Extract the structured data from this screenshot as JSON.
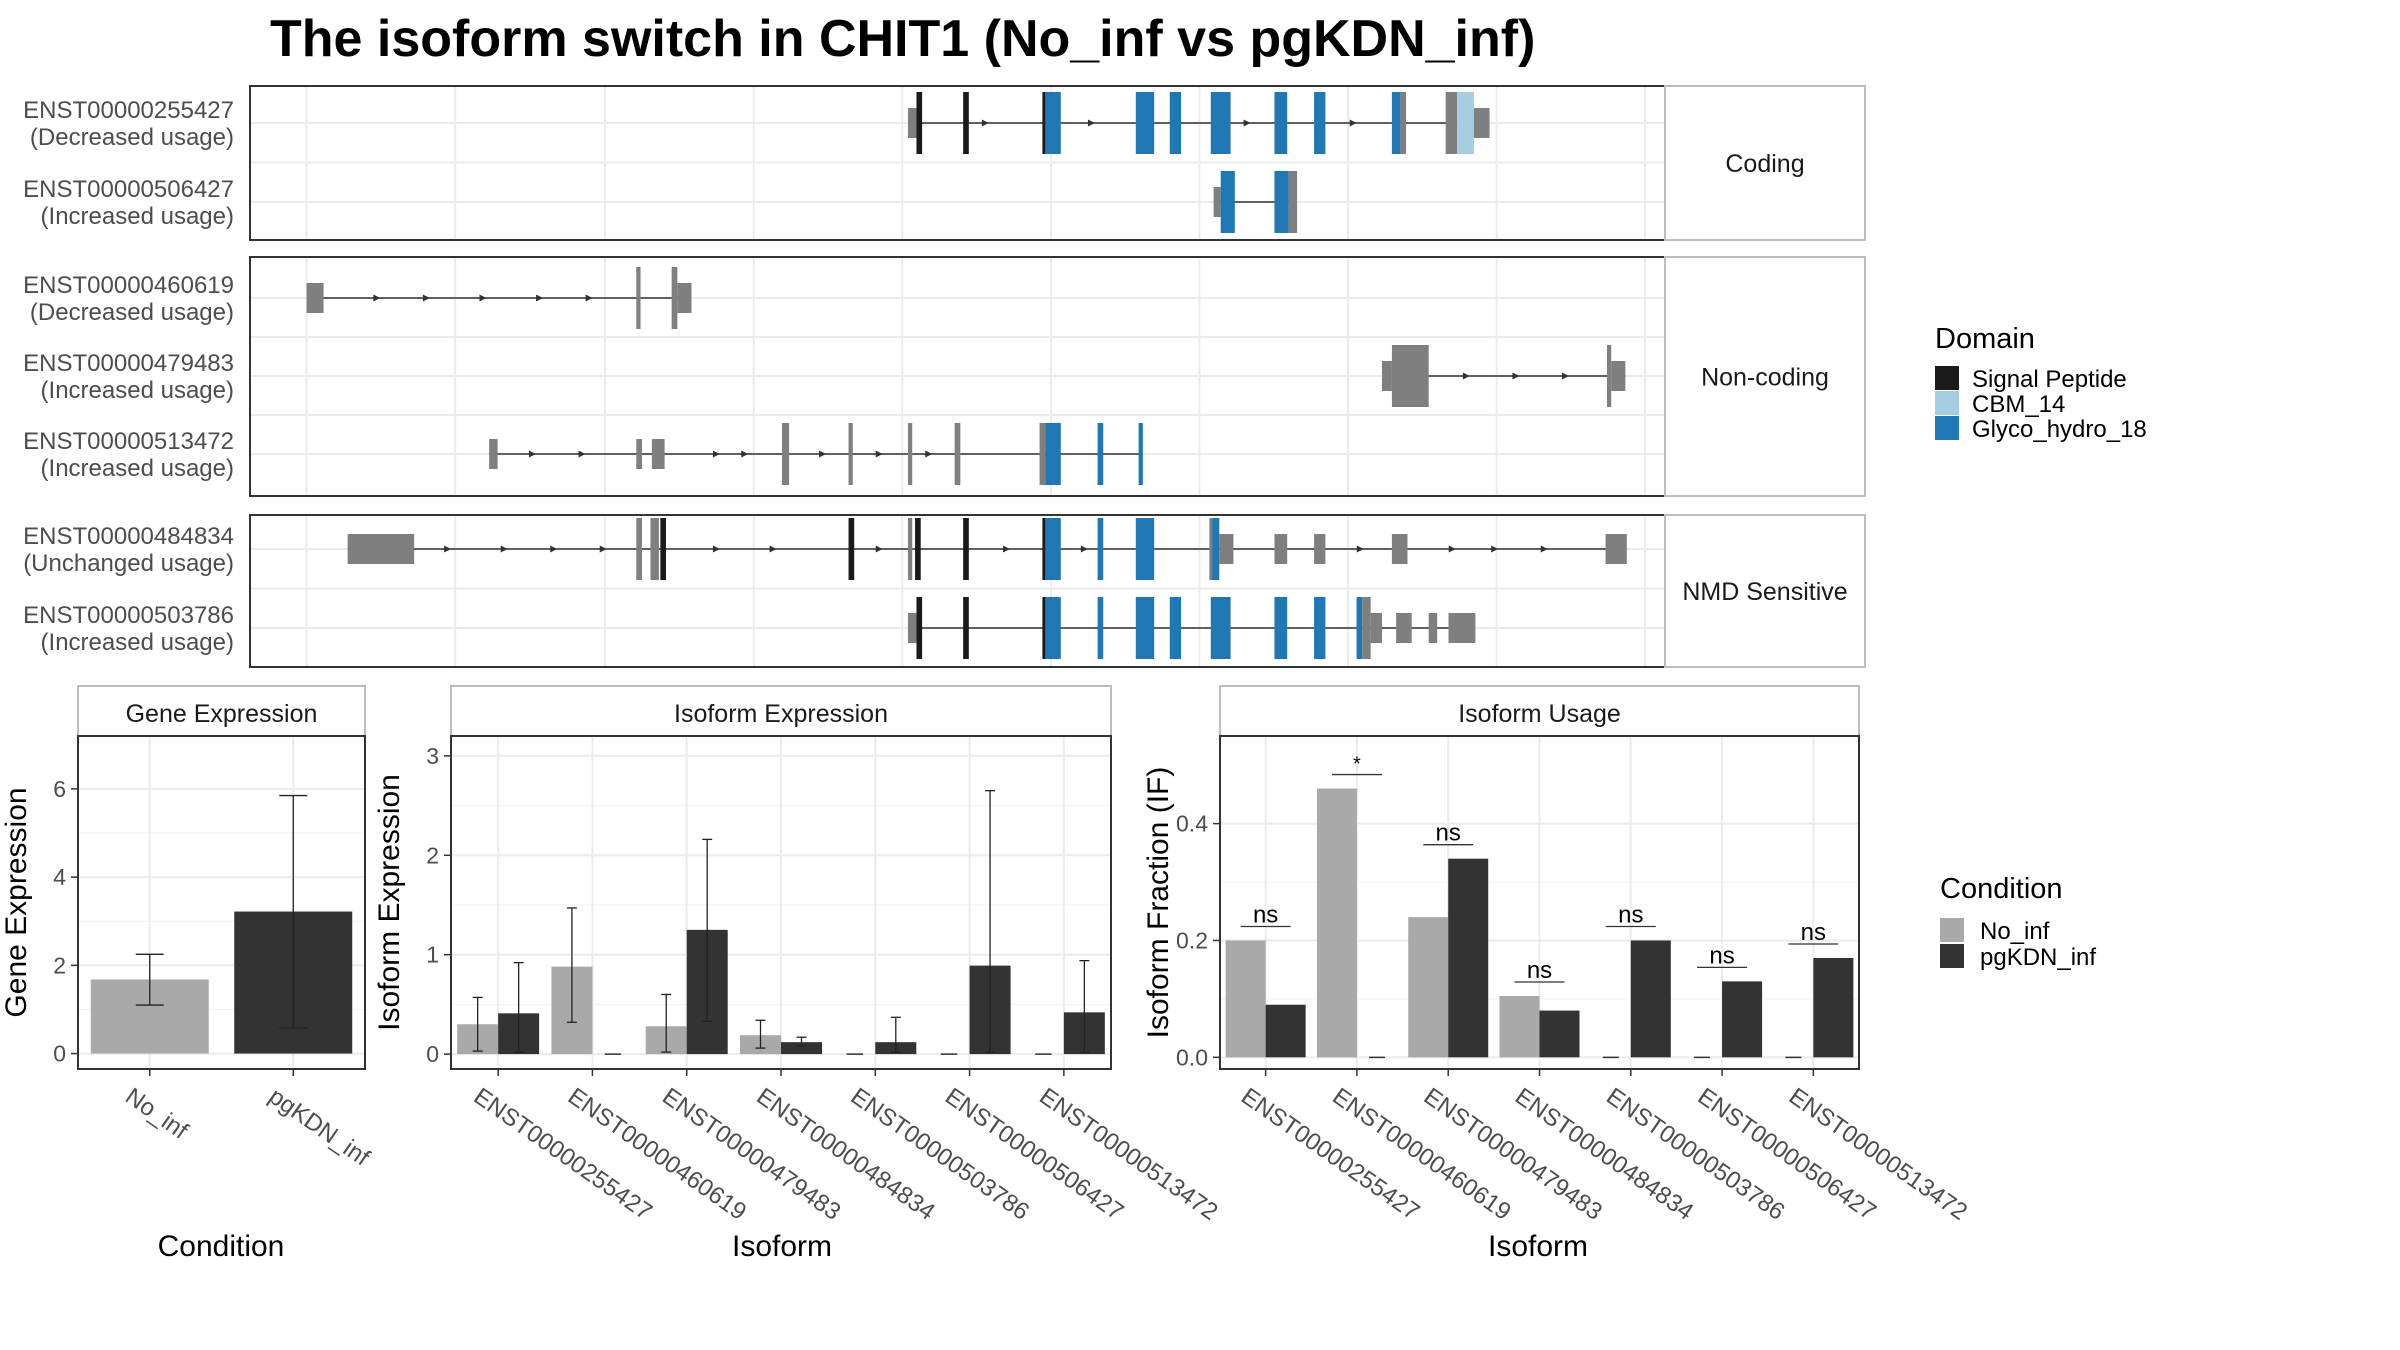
{
  "title": "The isoform switch in CHIT1 (No_inf vs pgKDN_inf)",
  "colors": {
    "signal_peptide": "#1a1a1a",
    "cbm_14": "#a6cee3",
    "glyco_hydro_18": "#1f78b4",
    "non_domain_exon": "#7f7f7f",
    "no_inf": "#a9a9a9",
    "pgkdn_inf": "#333333",
    "panel_strip": "#ffffff",
    "grid": "#ebebeb"
  },
  "structure": {
    "x_range": [
      0,
      100
    ],
    "facets": [
      {
        "label": "Coding",
        "tracks": [
          {
            "id": "ENST00000255427",
            "usage": "(Decreased usage)",
            "exons": [
              {
                "s": 46.5,
                "e": 47.1,
                "d": "none",
                "tall": false
              },
              {
                "s": 47.1,
                "e": 47.5,
                "d": "signal_peptide",
                "tall": true
              },
              {
                "s": 50.4,
                "e": 50.8,
                "d": "signal_peptide",
                "tall": true
              },
              {
                "s": 56.0,
                "e": 56.2,
                "d": "signal_peptide",
                "tall": true
              },
              {
                "s": 56.2,
                "e": 57.3,
                "d": "glyco_hydro_18",
                "tall": true
              },
              {
                "s": 62.6,
                "e": 63.9,
                "d": "glyco_hydro_18",
                "tall": true
              },
              {
                "s": 65.0,
                "e": 65.8,
                "d": "glyco_hydro_18",
                "tall": true
              },
              {
                "s": 67.9,
                "e": 69.3,
                "d": "glyco_hydro_18",
                "tall": true
              },
              {
                "s": 72.4,
                "e": 73.3,
                "d": "glyco_hydro_18",
                "tall": true
              },
              {
                "s": 75.2,
                "e": 76.0,
                "d": "glyco_hydro_18",
                "tall": true
              },
              {
                "s": 80.7,
                "e": 81.3,
                "d": "glyco_hydro_18",
                "tall": true
              },
              {
                "s": 81.3,
                "e": 81.7,
                "d": "none",
                "tall": true
              },
              {
                "s": 84.5,
                "e": 85.3,
                "d": "none",
                "tall": true
              },
              {
                "s": 85.3,
                "e": 86.5,
                "d": "cbm_14",
                "tall": true
              },
              {
                "s": 86.5,
                "e": 87.6,
                "d": "none",
                "tall": false
              }
            ],
            "arrows": [
              52,
              59.5,
              70.5,
              78
            ]
          },
          {
            "id": "ENST00000506427",
            "usage": "(Increased usage)",
            "exons": [
              {
                "s": 68.1,
                "e": 68.6,
                "d": "none",
                "tall": false
              },
              {
                "s": 68.6,
                "e": 69.6,
                "d": "glyco_hydro_18",
                "tall": true
              },
              {
                "s": 72.4,
                "e": 73.4,
                "d": "glyco_hydro_18",
                "tall": true
              },
              {
                "s": 73.4,
                "e": 74.0,
                "d": "none",
                "tall": true
              }
            ],
            "arrows": []
          }
        ]
      },
      {
        "label": "Non-coding",
        "tracks": [
          {
            "id": "ENST00000460619",
            "usage": "(Decreased usage)",
            "exons": [
              {
                "s": 4.0,
                "e": 5.2,
                "d": "none",
                "tall": false
              },
              {
                "s": 27.3,
                "e": 27.6,
                "d": "none",
                "tall": true
              },
              {
                "s": 29.8,
                "e": 30.2,
                "d": "none",
                "tall": true
              },
              {
                "s": 30.2,
                "e": 31.2,
                "d": "none",
                "tall": false
              }
            ],
            "arrows": [
              9,
              12.5,
              16.5,
              20.5,
              24
            ]
          },
          {
            "id": "ENST00000479483",
            "usage": "(Increased usage)",
            "exons": [
              {
                "s": 80.0,
                "e": 80.7,
                "d": "none",
                "tall": false
              },
              {
                "s": 80.7,
                "e": 83.3,
                "d": "none",
                "tall": true
              },
              {
                "s": 95.9,
                "e": 96.2,
                "d": "none",
                "tall": true
              },
              {
                "s": 96.2,
                "e": 97.2,
                "d": "none",
                "tall": false
              }
            ],
            "arrows": [
              86,
              89.5,
              93
            ]
          },
          {
            "id": "ENST00000513472",
            "usage": "(Increased usage)",
            "exons": [
              {
                "s": 16.9,
                "e": 17.5,
                "d": "none",
                "tall": false
              },
              {
                "s": 27.3,
                "e": 27.7,
                "d": "none",
                "tall": false
              },
              {
                "s": 28.4,
                "e": 29.3,
                "d": "none",
                "tall": false
              },
              {
                "s": 37.6,
                "e": 38.1,
                "d": "none",
                "tall": true
              },
              {
                "s": 42.3,
                "e": 42.6,
                "d": "none",
                "tall": true
              },
              {
                "s": 46.5,
                "e": 46.8,
                "d": "none",
                "tall": true
              },
              {
                "s": 49.8,
                "e": 50.2,
                "d": "none",
                "tall": true
              },
              {
                "s": 55.8,
                "e": 56.2,
                "d": "none",
                "tall": true
              },
              {
                "s": 56.2,
                "e": 57.3,
                "d": "glyco_hydro_18",
                "tall": true
              },
              {
                "s": 59.9,
                "e": 60.3,
                "d": "glyco_hydro_18",
                "tall": true
              },
              {
                "s": 62.8,
                "e": 63.1,
                "d": "glyco_hydro_18",
                "tall": true
              }
            ],
            "arrows": [
              20,
              23.5,
              33,
              35,
              40.5,
              44.5,
              48
            ]
          }
        ]
      },
      {
        "label": "NMD Sensitive",
        "tracks": [
          {
            "id": "ENST00000484834",
            "usage": "(Unchanged usage)",
            "exons": [
              {
                "s": 6.9,
                "e": 11.6,
                "d": "none",
                "tall": false
              },
              {
                "s": 27.3,
                "e": 27.7,
                "d": "none",
                "tall": true
              },
              {
                "s": 28.3,
                "e": 28.9,
                "d": "none",
                "tall": true
              },
              {
                "s": 29.0,
                "e": 29.4,
                "d": "signal_peptide",
                "tall": true
              },
              {
                "s": 42.3,
                "e": 42.7,
                "d": "signal_peptide",
                "tall": true
              },
              {
                "s": 46.5,
                "e": 46.8,
                "d": "none",
                "tall": true
              },
              {
                "s": 47.0,
                "e": 47.4,
                "d": "signal_peptide",
                "tall": true
              },
              {
                "s": 50.4,
                "e": 50.8,
                "d": "signal_peptide",
                "tall": true
              },
              {
                "s": 56.0,
                "e": 56.2,
                "d": "signal_peptide",
                "tall": true
              },
              {
                "s": 56.2,
                "e": 57.3,
                "d": "glyco_hydro_18",
                "tall": true
              },
              {
                "s": 59.9,
                "e": 60.3,
                "d": "glyco_hydro_18",
                "tall": true
              },
              {
                "s": 62.6,
                "e": 63.9,
                "d": "glyco_hydro_18",
                "tall": true
              },
              {
                "s": 67.8,
                "e": 68.0,
                "d": "none",
                "tall": true
              },
              {
                "s": 68.0,
                "e": 68.5,
                "d": "glyco_hydro_18",
                "tall": true
              },
              {
                "s": 68.5,
                "e": 69.5,
                "d": "none",
                "tall": false
              },
              {
                "s": 72.4,
                "e": 73.3,
                "d": "none",
                "tall": false
              },
              {
                "s": 75.2,
                "e": 76.0,
                "d": "none",
                "tall": false
              },
              {
                "s": 80.7,
                "e": 81.8,
                "d": "none",
                "tall": false
              },
              {
                "s": 95.8,
                "e": 97.3,
                "d": "none",
                "tall": false
              }
            ],
            "arrows": [
              14,
              18,
              21.5,
              25,
              33,
              37,
              44.5,
              53.5,
              59,
              78.5,
              85,
              88,
              91.5
            ]
          },
          {
            "id": "ENST00000503786",
            "usage": "(Increased usage)",
            "exons": [
              {
                "s": 46.5,
                "e": 47.1,
                "d": "none",
                "tall": false
              },
              {
                "s": 47.1,
                "e": 47.5,
                "d": "signal_peptide",
                "tall": true
              },
              {
                "s": 50.4,
                "e": 50.8,
                "d": "signal_peptide",
                "tall": true
              },
              {
                "s": 56.0,
                "e": 56.2,
                "d": "signal_peptide",
                "tall": true
              },
              {
                "s": 56.2,
                "e": 57.3,
                "d": "glyco_hydro_18",
                "tall": true
              },
              {
                "s": 59.9,
                "e": 60.3,
                "d": "glyco_hydro_18",
                "tall": true
              },
              {
                "s": 62.6,
                "e": 63.9,
                "d": "glyco_hydro_18",
                "tall": true
              },
              {
                "s": 65.0,
                "e": 65.8,
                "d": "glyco_hydro_18",
                "tall": true
              },
              {
                "s": 67.9,
                "e": 69.3,
                "d": "glyco_hydro_18",
                "tall": true
              },
              {
                "s": 72.4,
                "e": 73.3,
                "d": "glyco_hydro_18",
                "tall": true
              },
              {
                "s": 75.2,
                "e": 76.0,
                "d": "glyco_hydro_18",
                "tall": true
              },
              {
                "s": 78.2,
                "e": 78.6,
                "d": "glyco_hydro_18",
                "tall": true
              },
              {
                "s": 78.6,
                "e": 79.2,
                "d": "none",
                "tall": true
              },
              {
                "s": 79.2,
                "e": 80.0,
                "d": "none",
                "tall": false
              },
              {
                "s": 81.0,
                "e": 82.1,
                "d": "none",
                "tall": false
              },
              {
                "s": 83.3,
                "e": 83.9,
                "d": "none",
                "tall": false
              },
              {
                "s": 84.7,
                "e": 86.6,
                "d": "none",
                "tall": false
              }
            ],
            "arrows": []
          }
        ]
      }
    ]
  },
  "legend_domain": {
    "title": "Domain",
    "items": [
      {
        "label": "Signal Peptide",
        "key": "signal_peptide"
      },
      {
        "label": "CBM_14",
        "key": "cbm_14"
      },
      {
        "label": "Glyco_hydro_18",
        "key": "glyco_hydro_18"
      }
    ]
  },
  "legend_condition": {
    "title": "Condition",
    "items": [
      {
        "label": "No_inf",
        "key": "no_inf"
      },
      {
        "label": "pgKDN_inf",
        "key": "pgkdn_inf"
      }
    ]
  },
  "chart_data": [
    {
      "type": "bar",
      "title": "Gene Expression",
      "xlabel": "Condition",
      "ylabel": "Gene Expression",
      "ylim": [
        -0.35,
        7.2
      ],
      "yticks": [
        0,
        2,
        4,
        6
      ],
      "categories": [
        "No_inf",
        "pgKDN_inf"
      ],
      "values": [
        1.68,
        3.22
      ],
      "error_low": [
        1.1,
        0.58
      ],
      "error_high": [
        2.25,
        5.85
      ]
    },
    {
      "type": "bar",
      "title": "Isoform Expression",
      "xlabel": "Isoform",
      "ylabel": "Isoform Expression",
      "ylim": [
        -0.15,
        3.2
      ],
      "yticks": [
        0,
        1,
        2,
        3
      ],
      "categories": [
        "ENST00000255427",
        "ENST00000460619",
        "ENST00000479483",
        "ENST00000484834",
        "ENST00000503786",
        "ENST00000506427",
        "ENST00000513472"
      ],
      "series": [
        {
          "name": "No_inf",
          "values": [
            0.3,
            0.88,
            0.28,
            0.19,
            0.0,
            0.0,
            0.0
          ],
          "error_low": [
            0.03,
            0.32,
            0.02,
            0.06,
            0.0,
            0.0,
            0.0
          ],
          "error_high": [
            0.57,
            1.47,
            0.6,
            0.34,
            0.0,
            0.0,
            0.0
          ]
        },
        {
          "name": "pgKDN_inf",
          "values": [
            0.41,
            0.0,
            1.25,
            0.12,
            0.12,
            0.89,
            0.42
          ],
          "error_low": [
            0.02,
            0.0,
            0.33,
            0.08,
            0.02,
            0.02,
            0.02
          ],
          "error_high": [
            0.92,
            0.0,
            2.16,
            0.17,
            0.37,
            2.65,
            0.94
          ]
        }
      ]
    },
    {
      "type": "bar",
      "title": "Isoform Usage",
      "xlabel": "Isoform",
      "ylabel": "Isoform Fraction (IF)",
      "ylim": [
        -0.02,
        0.55
      ],
      "yticks": [
        0.0,
        0.2,
        0.4
      ],
      "ytick_labels": [
        "0.0",
        "0.2",
        "0.4"
      ],
      "categories": [
        "ENST00000255427",
        "ENST00000460619",
        "ENST00000479483",
        "ENST00000484834",
        "ENST00000503786",
        "ENST00000506427",
        "ENST00000513472"
      ],
      "series": [
        {
          "name": "No_inf",
          "values": [
            0.2,
            0.46,
            0.24,
            0.105,
            0.0,
            0.0,
            0.0
          ]
        },
        {
          "name": "pgKDN_inf",
          "values": [
            0.09,
            0.0,
            0.34,
            0.08,
            0.2,
            0.13,
            0.17
          ]
        }
      ],
      "significance": [
        "ns",
        "*",
        "ns",
        "ns",
        "ns",
        "ns",
        "ns"
      ]
    }
  ]
}
